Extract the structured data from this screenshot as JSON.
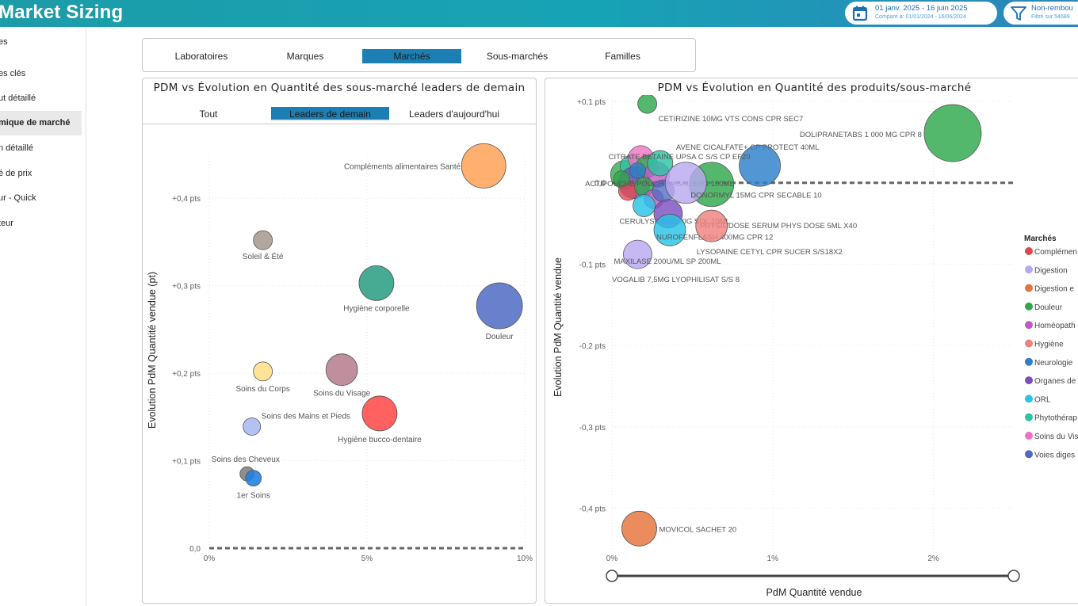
{
  "app": {
    "title": "Market Sizing"
  },
  "header": {
    "date_range": "01 janv. 2025 - 16 juin 2025",
    "compare": "Comparé à: 01/01/2024 - 16/06/2024",
    "filter_label": "Non-rembou",
    "filter_sub": "Filtré sur 54689"
  },
  "sidebar": {
    "items": [
      {
        "label": "es"
      },
      {
        "label": "es clés"
      },
      {
        "label": "ut détaillé"
      },
      {
        "label": "mique de marché"
      },
      {
        "label": "n détaillé"
      },
      {
        "label": "é de prix"
      },
      {
        "label": "ur - Quick"
      },
      {
        "label": "teur"
      }
    ],
    "active_index": 3
  },
  "tabs": {
    "items": [
      {
        "label": "Laboratoires"
      },
      {
        "label": "Marques"
      },
      {
        "label": "Marchés"
      },
      {
        "label": "Sous-marchés"
      },
      {
        "label": "Familles"
      }
    ],
    "active_index": 2
  },
  "left_panel": {
    "title": "PDM vs Évolution en Quantité des sous-marché leaders de demain",
    "subtabs": [
      {
        "label": "Tout"
      },
      {
        "label": "Leaders de demain"
      },
      {
        "label": "Leaders d'aujourd'hui"
      }
    ],
    "active_subtab": 1
  },
  "right_panel": {
    "title": "PDM vs Évolution en Quantité des produits/sous-marché"
  },
  "chart_data": [
    {
      "type": "scatter",
      "title": "PDM vs Évolution en Quantité des sous-marché leaders de demain",
      "xlabel": "PdM Quantité vendue",
      "ylabel": "Evolution PdM Quantité vendue (pt)",
      "xlim": [
        0,
        10
      ],
      "ylim": [
        0,
        0.45
      ],
      "xticks": [
        "0%",
        "5%",
        "10%"
      ],
      "yticks": [
        "0,0",
        "+0,1 pts",
        "+0,2 pts",
        "+0,3 pts",
        "+0,4 pts"
      ],
      "points": [
        {
          "label": "Compléments alimentaires Santé",
          "x": 8.7,
          "y": 0.437,
          "size": 28,
          "color": "#FFA45C"
        },
        {
          "label": "Soleil & Été",
          "x": 1.7,
          "y": 0.352,
          "size": 12,
          "color": "#A89B90"
        },
        {
          "label": "Hygiène corporelle",
          "x": 5.3,
          "y": 0.303,
          "size": 22,
          "color": "#2E9E84"
        },
        {
          "label": "Douleur",
          "x": 9.2,
          "y": 0.277,
          "size": 29,
          "color": "#5470C6"
        },
        {
          "label": "Soins du Corps",
          "x": 1.7,
          "y": 0.202,
          "size": 12,
          "color": "#FFE08A"
        },
        {
          "label": "Soins du Visage",
          "x": 4.2,
          "y": 0.204,
          "size": 20,
          "color": "#B67F90"
        },
        {
          "label": "Soins des Mains et Pieds",
          "x": 1.35,
          "y": 0.139,
          "size": 11,
          "color": "#A9B9F0"
        },
        {
          "label": "Hygiène bucco-dentaire",
          "x": 5.4,
          "y": 0.154,
          "size": 22,
          "color": "#FF4A4A"
        },
        {
          "label": "Soins des Cheveux",
          "x": 1.2,
          "y": 0.085,
          "size": 9,
          "color": "#7E7E7E"
        },
        {
          "label": "1er Soins",
          "x": 1.4,
          "y": 0.08,
          "size": 10,
          "color": "#1F7FE0"
        }
      ]
    },
    {
      "type": "scatter",
      "title": "PDM vs Évolution en Quantité des produits/sous-marché",
      "xlabel": "PdM Quantité vendue",
      "ylabel": "Evolution PdM Quantité vendue",
      "xlim": [
        0,
        2.5
      ],
      "ylim": [
        -0.45,
        0.1
      ],
      "xticks": [
        "0%",
        "1%",
        "2%"
      ],
      "yticks": [
        "+0,1 pts",
        "0,0",
        "-0,1 pts",
        "-0,2 pts",
        "-0,3 pts",
        "-0,4 pts"
      ],
      "legend": {
        "title": "Marchés",
        "position": "right",
        "items": [
          {
            "name": "Complémen",
            "color": "#E0474C"
          },
          {
            "name": "Digestion",
            "color": "#B8A8F0"
          },
          {
            "name": "Digestion e",
            "color": "#E6733B"
          },
          {
            "name": "Douleur",
            "color": "#2DA84A"
          },
          {
            "name": "Homéopath",
            "color": "#C257C9"
          },
          {
            "name": "Hygiène",
            "color": "#F08080"
          },
          {
            "name": "Neurologie",
            "color": "#2C7FCA"
          },
          {
            "name": "Organes de",
            "color": "#7C4FC0"
          },
          {
            "name": "ORL",
            "color": "#28C3E8"
          },
          {
            "name": "Phytothérap",
            "color": "#2CC4A5"
          },
          {
            "name": "Soins du Vis",
            "color": "#F06EC4"
          },
          {
            "name": "Voies diges",
            "color": "#4F6AC2"
          }
        ]
      },
      "points": [
        {
          "label": "CETIRIZINE 10MG VTS CONS CPR SEC7",
          "x": 0.22,
          "y": 0.097,
          "size": 12,
          "color": "#2DA84A"
        },
        {
          "label": "DOLIPRANETABS 1 000 MG CPR 8",
          "x": 2.12,
          "y": 0.061,
          "size": 36,
          "color": "#2DA84A"
        },
        {
          "label": "AVENE CICALFATE+ CP PROTECT 40ML",
          "x": 0.3,
          "y": 0.024,
          "size": 16,
          "color": "#2CC4A5"
        },
        {
          "label": "CITRATE BETAINE UPSA C S/S CP EF20",
          "x": 0.92,
          "y": 0.021,
          "size": 26,
          "color": "#2C7FCA"
        },
        {
          "label": "ACTIPOUCHE POUCH NASAL BUG 100ML",
          "x": 0.62,
          "y": -0.002,
          "size": 28,
          "color": "#2DA84A"
        },
        {
          "label": "DONORMYL 15MG CPR SECABLE 10",
          "x": 0.46,
          "y": 0.0,
          "size": 26,
          "color": "#B8A8F0"
        },
        {
          "label": "CERULYSE 5G/100G SOL 10ML",
          "x": 0.2,
          "y": -0.028,
          "size": 14,
          "color": "#28C3E8"
        },
        {
          "label": "PHYSIODOSE SERUM PHYS DOSE 5ML X40",
          "x": 0.35,
          "y": -0.038,
          "size": 18,
          "color": "#7C4FC0"
        },
        {
          "label": "NUROFENFLASH 400MG CPR 12",
          "x": 0.36,
          "y": -0.058,
          "size": 20,
          "color": "#28C3E8"
        },
        {
          "label": "LYSOPAINE CETYL CPR SUCER S/S18X2",
          "x": 0.62,
          "y": -0.053,
          "size": 20,
          "color": "#F08080"
        },
        {
          "label": "MAXILASE 200U/ML SP 200ML",
          "x": 0.16,
          "y": -0.088,
          "size": 18,
          "color": "#B8A8F0"
        },
        {
          "label": "VOGALIB 7,5MG LYOPHILISAT S/S 8",
          "x": 0.0,
          "y": -0.118,
          "size": 0,
          "color": "#4F6AC2"
        },
        {
          "label": "MOVICOL SACHET 20",
          "x": 0.17,
          "y": -0.425,
          "size": 22,
          "color": "#E6733B"
        }
      ]
    }
  ]
}
